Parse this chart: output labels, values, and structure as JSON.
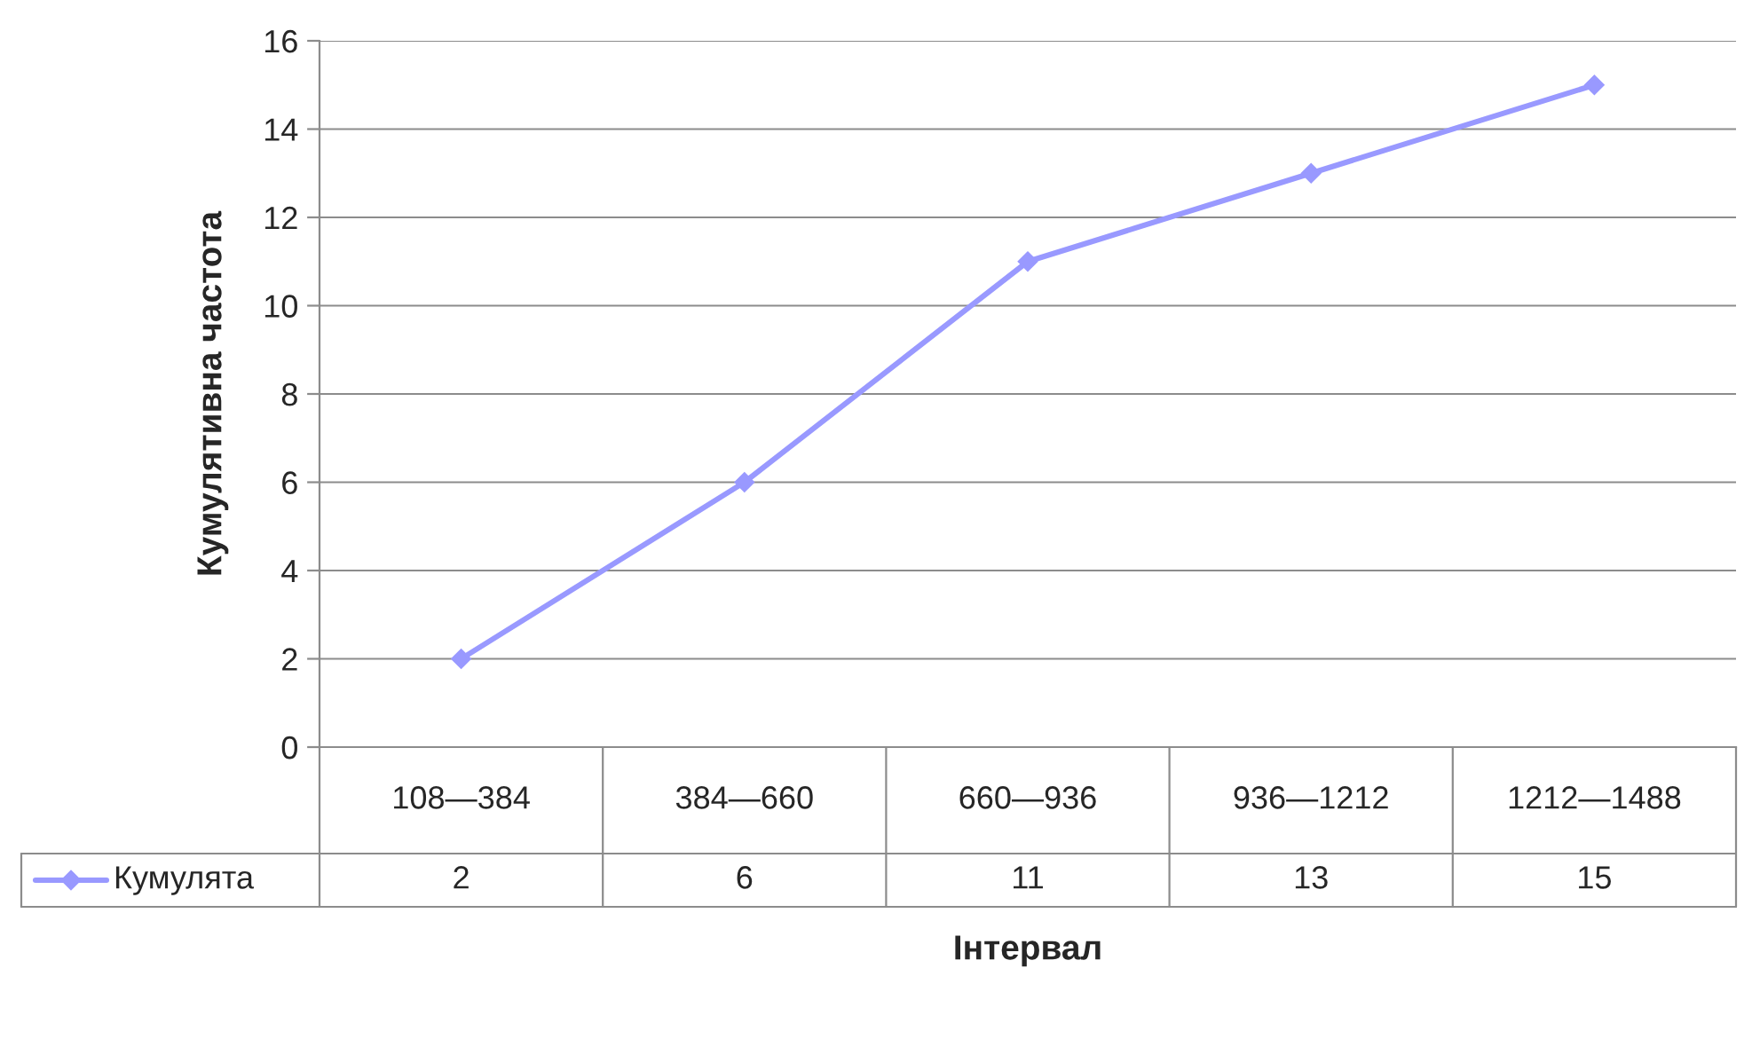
{
  "chart_data": {
    "type": "line",
    "xlabel": "Інтервал",
    "ylabel": "Кумулятивна частота",
    "categories": [
      "108—384",
      "384—660",
      "660—936",
      "936—1212",
      "1212—1488"
    ],
    "series": [
      {
        "name": "Кумулята",
        "color": "#9999ff",
        "values": [
          2,
          6,
          11,
          13,
          15
        ]
      }
    ],
    "ylim": [
      0,
      16
    ],
    "yticks": [
      0,
      2,
      4,
      6,
      8,
      10,
      12,
      14,
      16
    ],
    "grid": "y",
    "marker": "diamond",
    "line_style": "solid",
    "legend": "bottom",
    "data_labels": true
  }
}
